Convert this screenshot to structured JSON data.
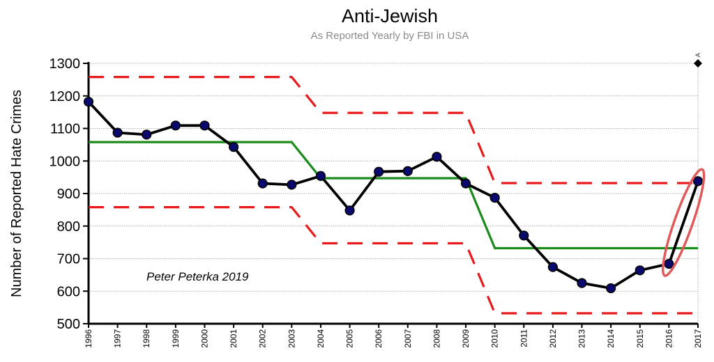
{
  "chart_data": {
    "type": "line",
    "title": "Anti-Jewish",
    "subtitle": "As Reported Yearly by FBI in USA",
    "ylabel": "Number of Reported Hate Crimes",
    "xlabel": "",
    "annotation": "Peter Peterka 2019",
    "corner_label": "A",
    "ylim": [
      500,
      1300
    ],
    "yticks": [
      500,
      600,
      700,
      800,
      900,
      1000,
      1100,
      1200,
      1300
    ],
    "x": [
      "1996",
      "1997",
      "1998",
      "1999",
      "2000",
      "2001",
      "2002",
      "2003",
      "2004",
      "2005",
      "2006",
      "2007",
      "2008",
      "2009",
      "2010",
      "2011",
      "2012",
      "2013",
      "2014",
      "2015",
      "2016",
      "2017"
    ],
    "grid": "horizontal dotted",
    "series": [
      {
        "role": "data",
        "color": "#000000",
        "marker_color": "#0a0a6e",
        "values": [
          1182,
          1087,
          1081,
          1109,
          1109,
          1043,
          931,
          927,
          954,
          848,
          967,
          969,
          1013,
          931,
          887,
          771,
          674,
          625,
          609,
          664,
          684,
          938
        ]
      },
      {
        "role": "mean",
        "color": "#1a8a1a",
        "points": [
          [
            "1996",
            1058
          ],
          [
            "2003",
            1058
          ],
          [
            "2004",
            947
          ],
          [
            "2009",
            947
          ],
          [
            "2010",
            732
          ],
          [
            "2017",
            732
          ]
        ]
      },
      {
        "role": "upper-limit",
        "color": "#e8191b",
        "dashed": true,
        "points": [
          [
            "1996",
            1258
          ],
          [
            "2003",
            1258
          ],
          [
            "2004",
            1148
          ],
          [
            "2009",
            1148
          ],
          [
            "2010",
            932
          ],
          [
            "2017",
            932
          ]
        ]
      },
      {
        "role": "lower-limit",
        "color": "#e8191b",
        "dashed": true,
        "points": [
          [
            "1996",
            858
          ],
          [
            "2003",
            858
          ],
          [
            "2004",
            747
          ],
          [
            "2009",
            747
          ],
          [
            "2010",
            532
          ],
          [
            "2017",
            532
          ]
        ]
      }
    ],
    "highlight": {
      "shape": "ellipse",
      "color": "#e05a5a",
      "encloses": [
        "2016",
        "2017"
      ]
    }
  }
}
